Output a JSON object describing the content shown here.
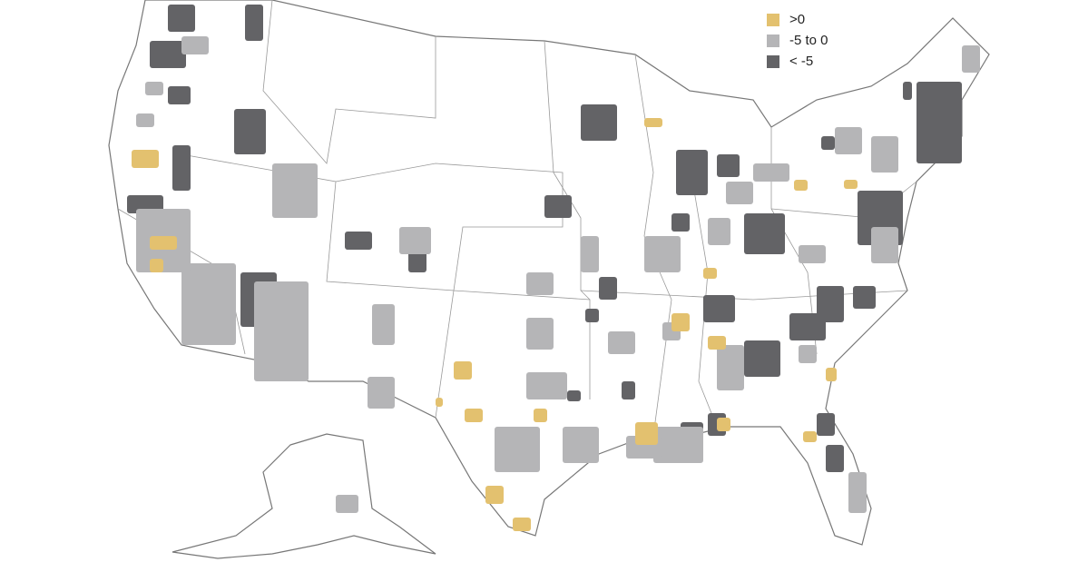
{
  "legend": {
    "items": [
      {
        "label": ">0",
        "color": "#e3c16f"
      },
      {
        "label": "-5 to 0",
        "color": "#b5b5b7"
      },
      {
        "label": "< -5",
        "color": "#636366"
      }
    ]
  }
}
